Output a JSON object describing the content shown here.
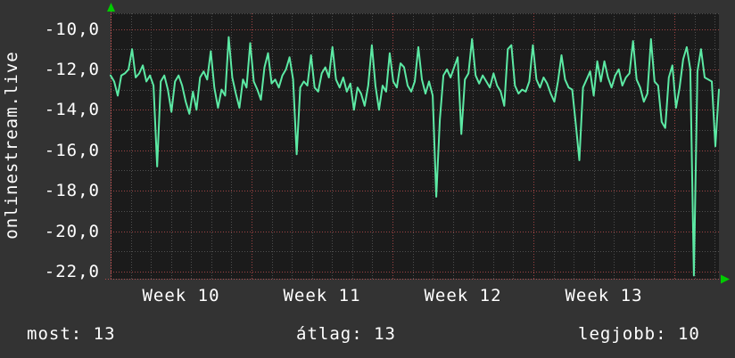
{
  "graph": {
    "left_axis_title": "onlinestream.live"
  },
  "y_axis": {
    "tick_labels": [
      "-10,0",
      "-12,0",
      "-14,0",
      "-16,0",
      "-18,0",
      "-20,0",
      "-22,0"
    ],
    "tick_values": [
      -10,
      -12,
      -14,
      -16,
      -18,
      -20,
      -22
    ]
  },
  "x_axis": {
    "labels": [
      "Week 10",
      "Week 11",
      "Week 12",
      "Week 13"
    ]
  },
  "stats": {
    "most_label": "most:",
    "most_value": "13",
    "atlag_label": "átlag:",
    "atlag_value": "13",
    "legjobb_label": "legjobb:",
    "legjobb_value": "10"
  },
  "colors": {
    "outer_background": "#333333",
    "plot_background": "#1b1b1b",
    "line": "#5ce9a4",
    "grid_minor": "#4e4e4e",
    "grid_major": "#9f4444",
    "axis": "#b05050",
    "arrow": "#00cc00",
    "text": "#ffffff"
  },
  "chart_data": {
    "type": "line",
    "title": "onlinestream.live",
    "x_labels": [
      "Week 10",
      "Week 11",
      "Week 12",
      "Week 13"
    ],
    "x_minor_unit": "day",
    "x_minor_per_major": 7,
    "ylim": [
      -22.45,
      -9.2
    ],
    "y_major_ticks": [
      -10,
      -12,
      -14,
      -16,
      -18,
      -20,
      -22
    ],
    "y_minor_ticks": [
      -11,
      -13,
      -15,
      -17,
      -19,
      -21
    ],
    "grid": true,
    "legend_position": "none",
    "summary": {
      "most": 13,
      "atlag": 13,
      "legjobb": 10
    },
    "series": [
      {
        "name": "onlinestream.live",
        "values": [
          -12.3,
          -12.6,
          -13.3,
          -12.3,
          -12.2,
          -12.0,
          -11.0,
          -12.4,
          -12.2,
          -11.8,
          -12.6,
          -12.3,
          -12.8,
          -16.8,
          -12.6,
          -12.3,
          -13.0,
          -14.1,
          -12.6,
          -12.3,
          -12.8,
          -13.6,
          -14.2,
          -13.1,
          -14.0,
          -12.4,
          -12.1,
          -12.5,
          -11.1,
          -12.9,
          -13.9,
          -13.0,
          -13.3,
          -10.4,
          -12.4,
          -13.2,
          -13.9,
          -12.5,
          -12.9,
          -10.7,
          -12.6,
          -13.0,
          -13.5,
          -11.9,
          -11.2,
          -12.7,
          -12.5,
          -12.9,
          -12.3,
          -12.0,
          -11.4,
          -12.5,
          -16.2,
          -12.9,
          -12.6,
          -12.8,
          -11.3,
          -12.9,
          -13.1,
          -12.2,
          -11.9,
          -12.4,
          -10.9,
          -12.5,
          -12.9,
          -12.4,
          -13.1,
          -12.7,
          -14.0,
          -12.9,
          -13.2,
          -13.8,
          -12.8,
          -10.8,
          -12.8,
          -14.0,
          -12.8,
          -13.1,
          -11.2,
          -12.6,
          -12.9,
          -11.7,
          -11.9,
          -12.8,
          -13.1,
          -12.6,
          -10.9,
          -12.5,
          -13.2,
          -12.6,
          -13.3,
          -18.3,
          -14.5,
          -12.3,
          -12.0,
          -12.4,
          -11.9,
          -11.4,
          -15.2,
          -12.5,
          -12.2,
          -10.5,
          -12.3,
          -12.7,
          -12.3,
          -12.6,
          -12.9,
          -12.2,
          -12.8,
          -13.1,
          -13.8,
          -11.0,
          -10.8,
          -12.8,
          -13.2,
          -13.0,
          -13.1,
          -12.6,
          -10.8,
          -12.5,
          -12.9,
          -12.4,
          -12.7,
          -13.2,
          -13.6,
          -12.6,
          -11.3,
          -12.5,
          -12.9,
          -13.0,
          -14.7,
          -16.5,
          -12.9,
          -12.5,
          -12.1,
          -13.3,
          -11.6,
          -12.6,
          -11.6,
          -12.4,
          -12.9,
          -12.3,
          -12.0,
          -12.8,
          -12.4,
          -12.2,
          -10.6,
          -12.5,
          -12.9,
          -13.6,
          -13.2,
          -10.5,
          -12.6,
          -12.8,
          -14.6,
          -14.9,
          -12.4,
          -11.8,
          -13.9,
          -12.9,
          -11.5,
          -10.9,
          -12.0,
          -22.2,
          -12.1,
          -11.0,
          -12.4,
          -12.5,
          -12.6,
          -15.8,
          -13.0
        ]
      }
    ]
  }
}
